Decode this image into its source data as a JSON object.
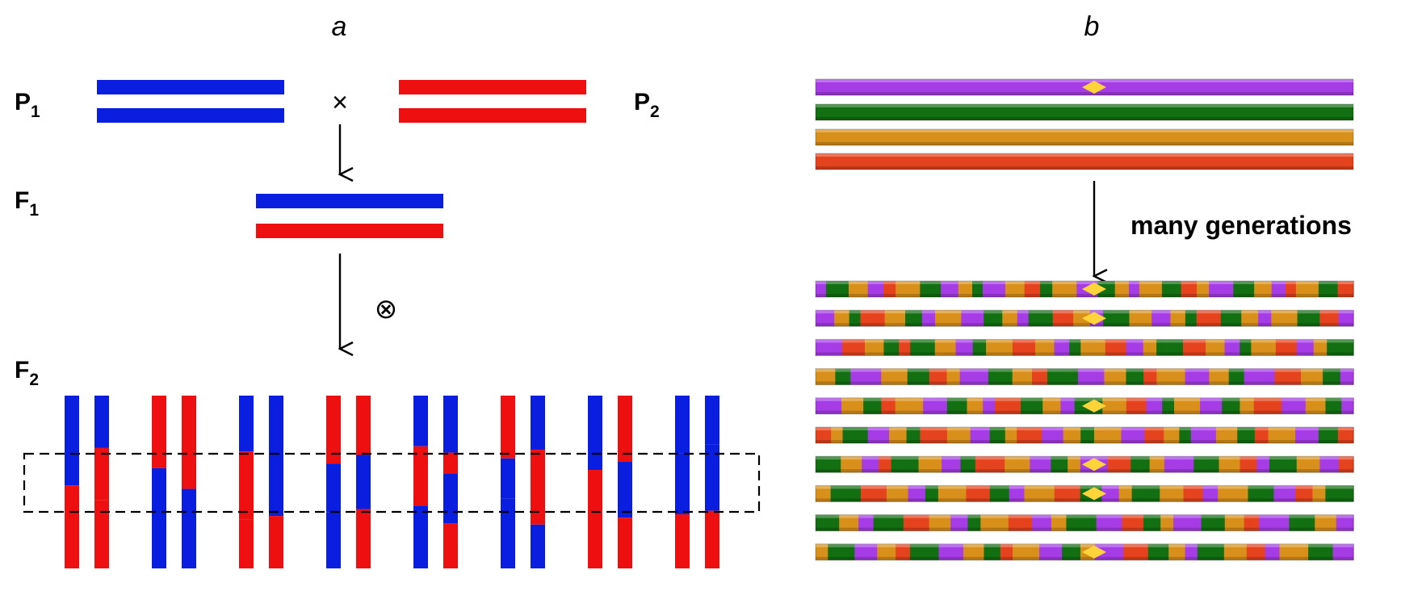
{
  "panels": {
    "a": {
      "label": "a",
      "generations": {
        "p1": {
          "main": "P",
          "sub": "1"
        },
        "p2": {
          "main": "P",
          "sub": "2"
        },
        "f1": {
          "main": "F",
          "sub": "1"
        },
        "f2": {
          "main": "F",
          "sub": "2"
        }
      },
      "cross_symbol": "×",
      "self_symbol": "⊗",
      "colors": {
        "parent1": "#0a1ee0",
        "parent2": "#ee1010"
      },
      "f2_chromosomes": [
        [
          "b",
          "r"
        ],
        [
          "b",
          "r",
          "r"
        ],
        [
          "r",
          "b"
        ],
        [
          "r",
          "b"
        ],
        [
          "b",
          "r",
          "r"
        ],
        [
          "b",
          "b",
          "r"
        ],
        [
          "r",
          "b",
          "b"
        ],
        [
          "r",
          "b",
          "r"
        ],
        [
          "b",
          "r",
          "b"
        ],
        [
          "b",
          "r",
          "b",
          "r"
        ],
        [
          "r",
          "b",
          "b"
        ],
        [
          "b",
          "r",
          "b"
        ],
        [
          "b",
          "r"
        ],
        [
          "r",
          "b",
          "r"
        ],
        [
          "b",
          "b",
          "r"
        ],
        [
          "b",
          "b",
          "r"
        ]
      ]
    },
    "b": {
      "label": "b",
      "note": "many generations",
      "colors": {
        "purple": "#a63ce6",
        "green": "#127012",
        "orange": "#d9901a",
        "red": "#e5431e",
        "centromere": "#ffd43b"
      },
      "founders": [
        "purple",
        "green",
        "orange",
        "red"
      ],
      "recombinants": [
        [
          "p",
          "g",
          "o",
          "p",
          "r",
          "o",
          "g",
          "p",
          "o",
          "g",
          "p",
          "o",
          "r",
          "g",
          "o",
          "p",
          "g",
          "o",
          "p",
          "o",
          "g",
          "r",
          "o",
          "p",
          "g",
          "o",
          "p",
          "r",
          "o",
          "g",
          "r"
        ],
        [
          "p",
          "o",
          "g",
          "r",
          "o",
          "g",
          "p",
          "o",
          "p",
          "g",
          "o",
          "p",
          "g",
          "r",
          "o",
          "p",
          "g",
          "o",
          "p",
          "o",
          "g",
          "r",
          "g",
          "o",
          "p",
          "o",
          "g",
          "r",
          "p"
        ],
        [
          "p",
          "r",
          "o",
          "g",
          "r",
          "g",
          "o",
          "p",
          "g",
          "o",
          "r",
          "o",
          "p",
          "g",
          "o",
          "r",
          "p",
          "o",
          "g",
          "r",
          "o",
          "p",
          "g",
          "o",
          "r",
          "p",
          "o",
          "g"
        ],
        [
          "o",
          "g",
          "p",
          "o",
          "g",
          "r",
          "o",
          "p",
          "g",
          "o",
          "r",
          "g",
          "p",
          "o",
          "g",
          "r",
          "o",
          "p",
          "o",
          "g",
          "p",
          "r",
          "o",
          "g",
          "p"
        ],
        [
          "p",
          "o",
          "g",
          "r",
          "o",
          "p",
          "g",
          "o",
          "p",
          "r",
          "g",
          "o",
          "p",
          "g",
          "o",
          "r",
          "p",
          "g",
          "o",
          "p",
          "g",
          "o",
          "r",
          "p",
          "o",
          "g",
          "p"
        ],
        [
          "r",
          "o",
          "g",
          "p",
          "o",
          "g",
          "r",
          "o",
          "p",
          "g",
          "o",
          "r",
          "p",
          "o",
          "g",
          "o",
          "p",
          "r",
          "o",
          "g",
          "p",
          "o",
          "g",
          "r",
          "o",
          "p",
          "g",
          "r"
        ],
        [
          "g",
          "o",
          "p",
          "r",
          "g",
          "o",
          "p",
          "g",
          "r",
          "o",
          "p",
          "g",
          "o",
          "p",
          "r",
          "g",
          "o",
          "p",
          "g",
          "o",
          "r",
          "p",
          "g",
          "o",
          "p",
          "r"
        ],
        [
          "o",
          "g",
          "r",
          "o",
          "p",
          "g",
          "o",
          "r",
          "g",
          "p",
          "o",
          "r",
          "g",
          "p",
          "o",
          "g",
          "o",
          "r",
          "p",
          "o",
          "g",
          "p",
          "r",
          "o",
          "g"
        ],
        [
          "g",
          "o",
          "p",
          "g",
          "r",
          "o",
          "p",
          "g",
          "o",
          "r",
          "p",
          "o",
          "g",
          "p",
          "r",
          "g",
          "o",
          "p",
          "g",
          "o",
          "r",
          "p",
          "g",
          "o",
          "p"
        ],
        [
          "o",
          "g",
          "p",
          "o",
          "r",
          "g",
          "p",
          "o",
          "g",
          "r",
          "o",
          "p",
          "g",
          "o",
          "p",
          "r",
          "g",
          "o",
          "p",
          "g",
          "o",
          "r",
          "p",
          "o",
          "g",
          "p"
        ]
      ],
      "centromere_rows": [
        0,
        1,
        4,
        6,
        7,
        9
      ]
    }
  }
}
